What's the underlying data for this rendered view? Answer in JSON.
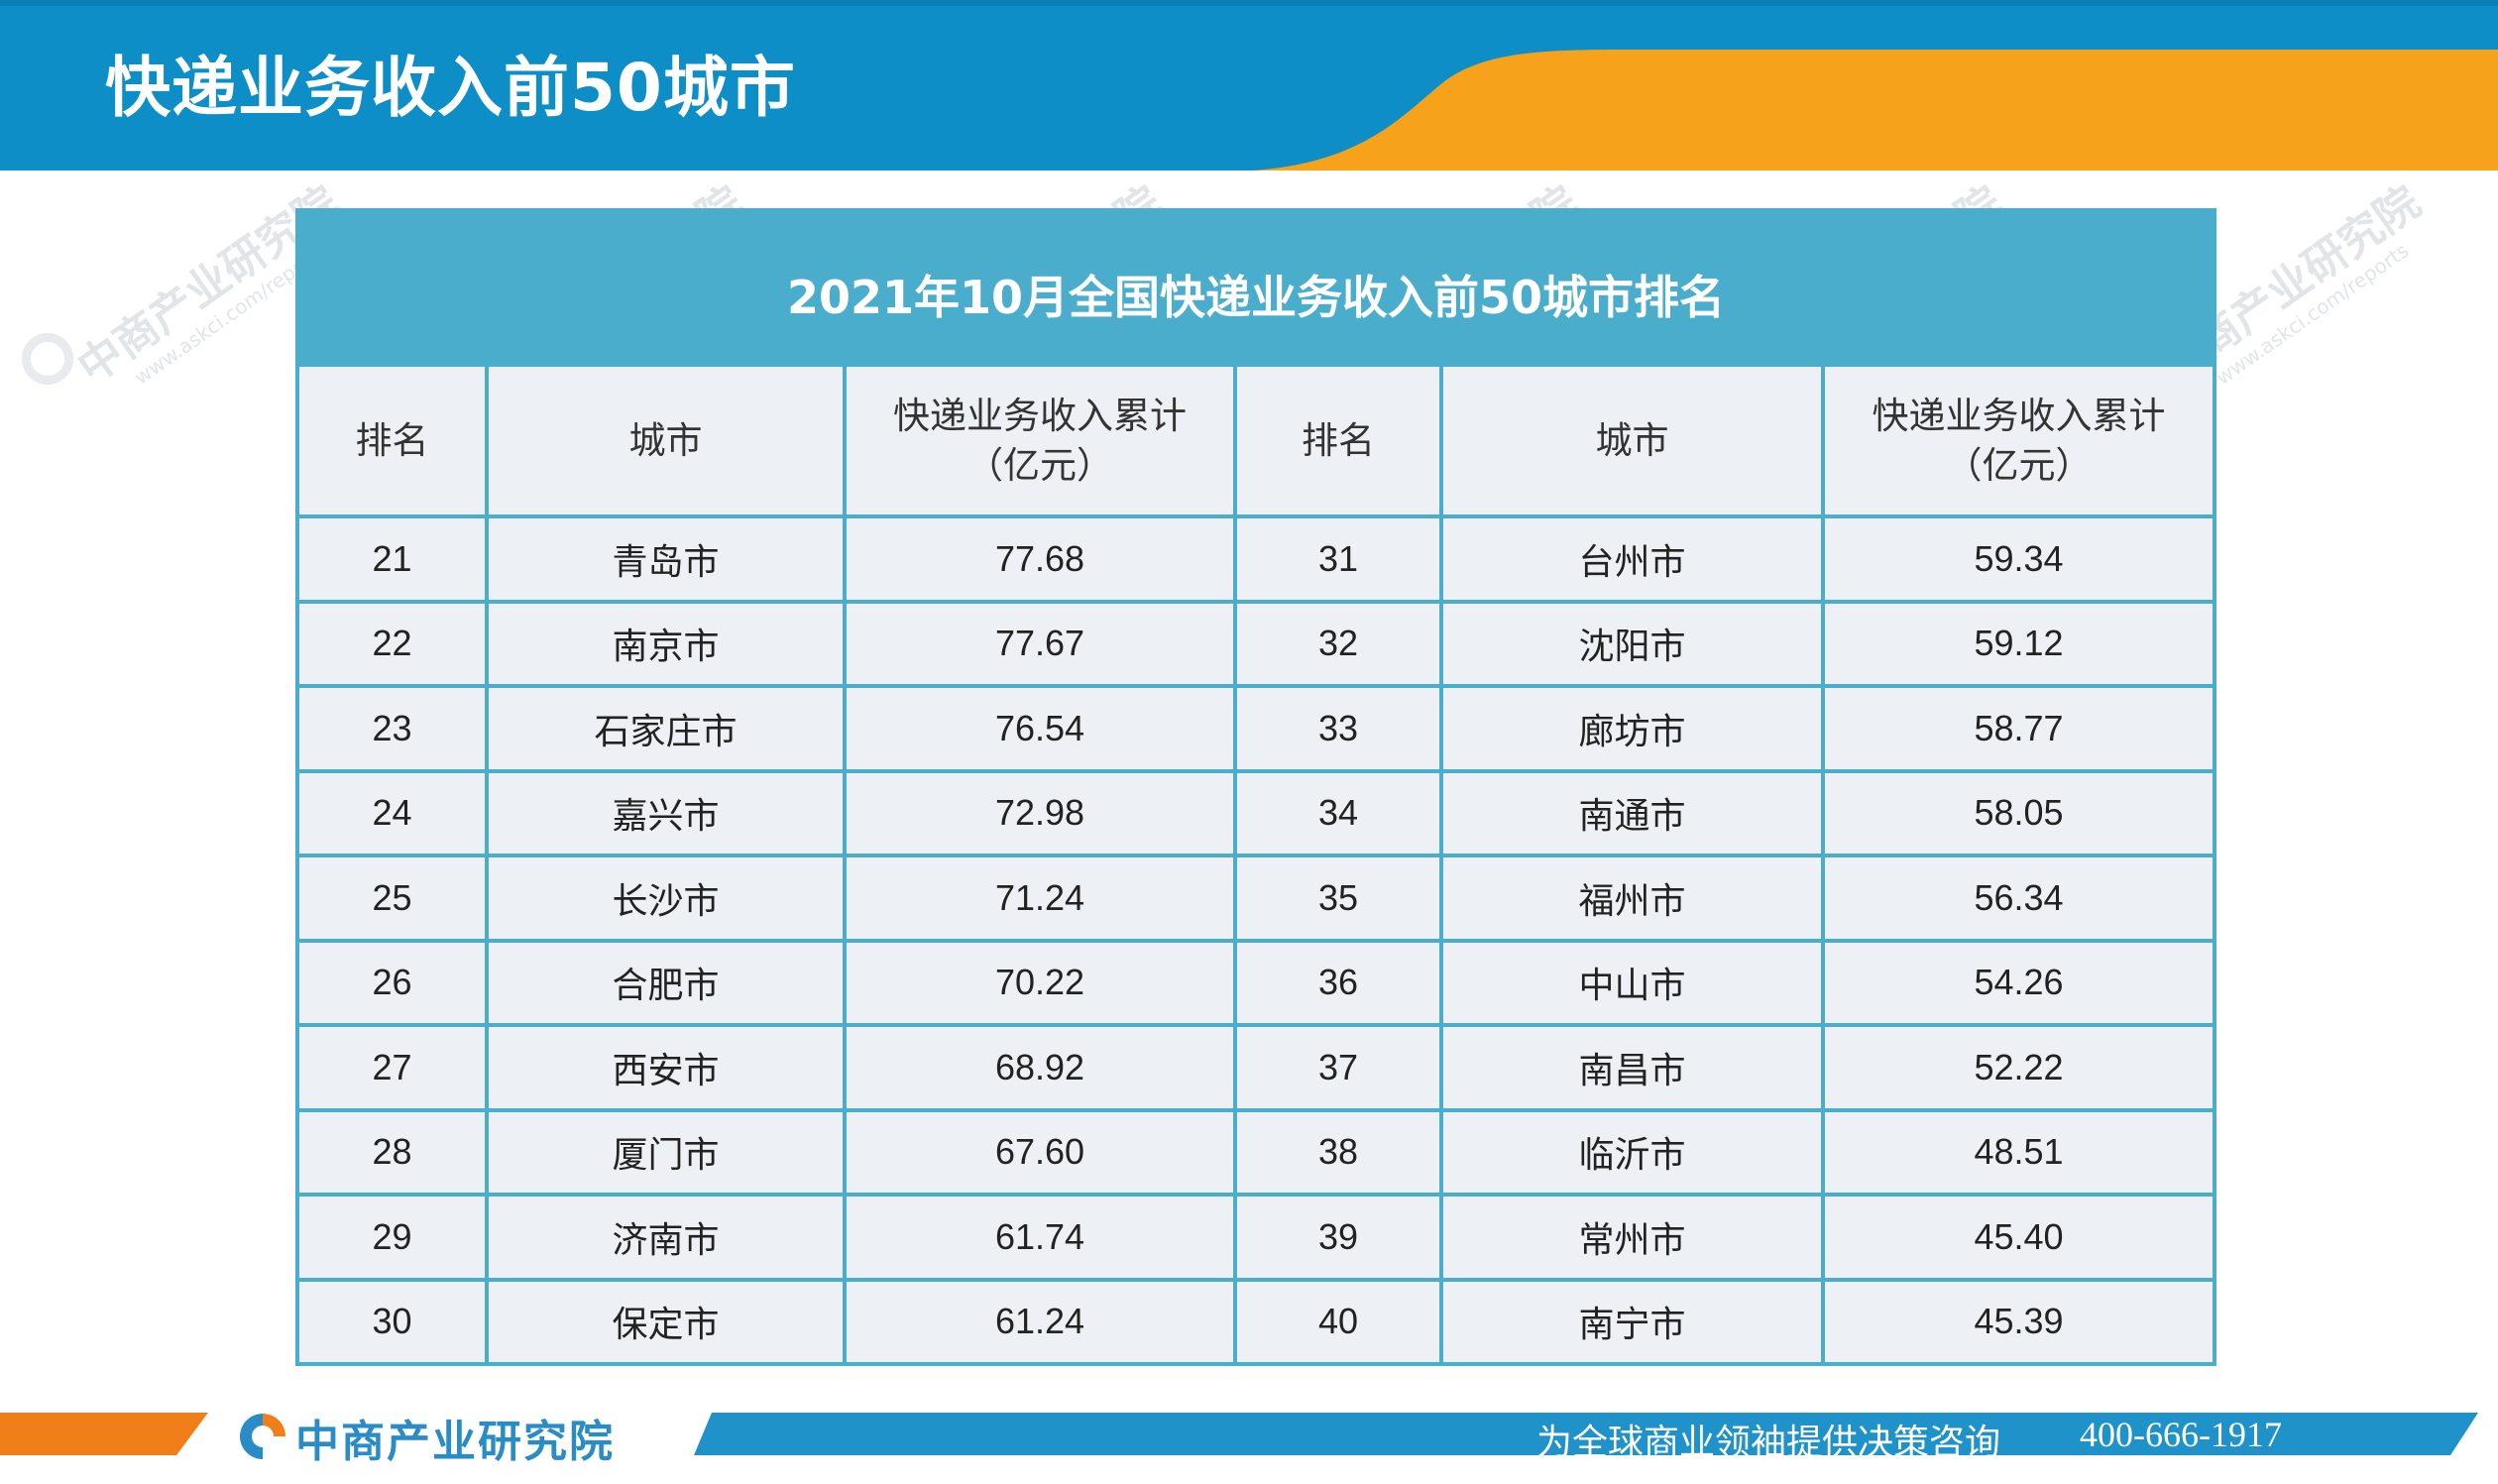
{
  "page": {
    "title": "快递业务收入前50城市"
  },
  "table": {
    "title": "2021年10月全国快递业务收入前50城市排名",
    "headers": {
      "rank": "排名",
      "city": "城市",
      "revenue_line1": "快递业务收入累计",
      "revenue_line2": "（亿元）"
    },
    "rows": [
      {
        "rank_a": "21",
        "city_a": "青岛市",
        "value_a": "77.68",
        "rank_b": "31",
        "city_b": "台州市",
        "value_b": "59.34"
      },
      {
        "rank_a": "22",
        "city_a": "南京市",
        "value_a": "77.67",
        "rank_b": "32",
        "city_b": "沈阳市",
        "value_b": "59.12"
      },
      {
        "rank_a": "23",
        "city_a": "石家庄市",
        "value_a": "76.54",
        "rank_b": "33",
        "city_b": "廊坊市",
        "value_b": "58.77"
      },
      {
        "rank_a": "24",
        "city_a": "嘉兴市",
        "value_a": "72.98",
        "rank_b": "34",
        "city_b": "南通市",
        "value_b": "58.05"
      },
      {
        "rank_a": "25",
        "city_a": "长沙市",
        "value_a": "71.24",
        "rank_b": "35",
        "city_b": "福州市",
        "value_b": "56.34"
      },
      {
        "rank_a": "26",
        "city_a": "合肥市",
        "value_a": "70.22",
        "rank_b": "36",
        "city_b": "中山市",
        "value_b": "54.26"
      },
      {
        "rank_a": "27",
        "city_a": "西安市",
        "value_a": "68.92",
        "rank_b": "37",
        "city_b": "南昌市",
        "value_b": "52.22"
      },
      {
        "rank_a": "28",
        "city_a": "厦门市",
        "value_a": "67.60",
        "rank_b": "38",
        "city_b": "临沂市",
        "value_b": "48.51"
      },
      {
        "rank_a": "29",
        "city_a": "济南市",
        "value_a": "61.74",
        "rank_b": "39",
        "city_b": "常州市",
        "value_b": "45.40"
      },
      {
        "rank_a": "30",
        "city_a": "保定市",
        "value_a": "61.24",
        "rank_b": "40",
        "city_b": "南宁市",
        "value_b": "45.39"
      }
    ]
  },
  "watermark": {
    "main": "中商产业研究院",
    "sub": "www.askci.com/reports"
  },
  "footer": {
    "logo_text": "中商产业研究院",
    "slogan": "为全球商业领袖提供决策咨询",
    "phone": "400-666-1917"
  },
  "colors": {
    "header_blue": "#0d8ec6",
    "header_orange": "#f7a21b",
    "table_blue": "#4badcc",
    "cell_bg": "#edf1f5",
    "footer_blue": "#1e92c9",
    "footer_orange": "#f07f1a"
  }
}
